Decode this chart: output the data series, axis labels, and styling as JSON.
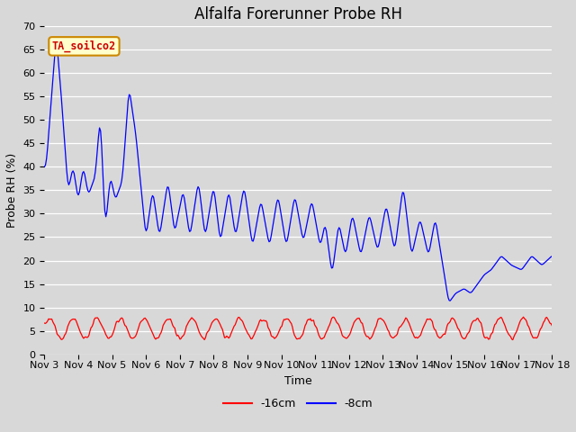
{
  "title": "Alfalfa Forerunner Probe RH",
  "xlabel": "Time",
  "ylabel": "Probe RH (%)",
  "ylim": [
    0,
    70
  ],
  "background_color": "#d8d8d8",
  "plot_bg_color": "#d8d8d8",
  "grid_color": "white",
  "legend_labels": [
    "-16cm",
    "-8cm"
  ],
  "legend_colors": [
    "red",
    "blue"
  ],
  "annotation_text": "TA_soilco2",
  "annotation_bg": "#ffffcc",
  "annotation_border": "#cc8800",
  "annotation_text_color": "#cc0000",
  "title_fontsize": 12,
  "axis_label_fontsize": 9,
  "tick_fontsize": 8
}
